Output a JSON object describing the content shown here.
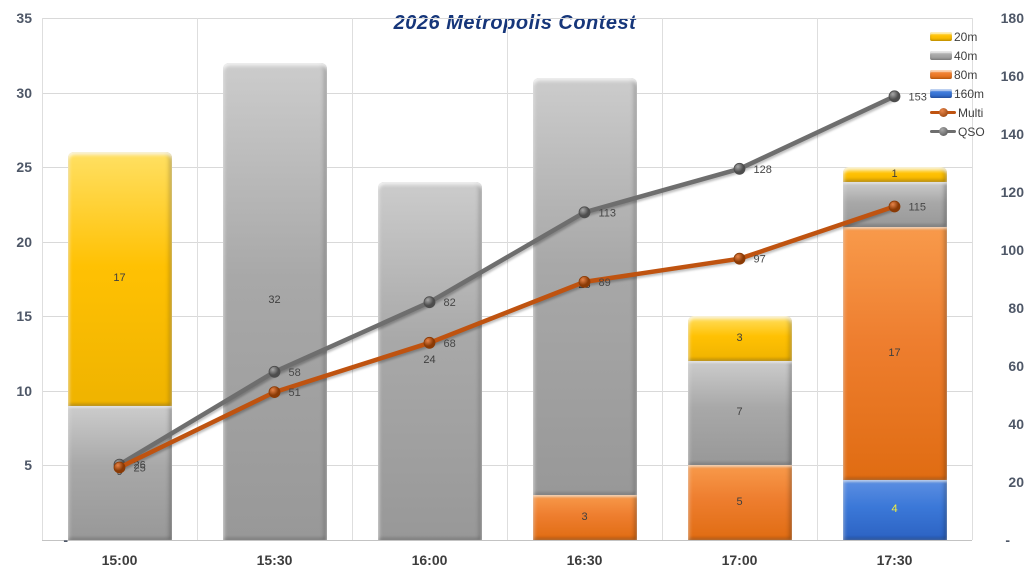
{
  "title": "2026 Metropolis Contest",
  "chart_data": {
    "type": "bar",
    "subtype": "stacked-column-with-lines",
    "title": "2026 Metropolis Contest",
    "categories": [
      "15:00",
      "15:30",
      "16:00",
      "16:30",
      "17:00",
      "17:30"
    ],
    "bar_series": [
      {
        "name": "20m",
        "color": "#FFC000",
        "values": [
          17,
          0,
          0,
          0,
          3,
          1
        ]
      },
      {
        "name": "40m",
        "color": "#A6A6A6",
        "values": [
          9,
          32,
          24,
          28,
          7,
          3
        ]
      },
      {
        "name": "80m",
        "color": "#ED7D31",
        "values": [
          0,
          0,
          0,
          3,
          5,
          17
        ]
      },
      {
        "name": "160m",
        "color": "#3B78D8",
        "values": [
          0,
          0,
          0,
          0,
          0,
          4
        ],
        "label_color_class": "lite"
      }
    ],
    "stack_order_bottom_to_top": [
      "160m",
      "80m",
      "40m",
      "20m"
    ],
    "hidden_bar_labels": [
      {
        "series": "40m",
        "category": "17:30"
      }
    ],
    "line_series": [
      {
        "name": "QSO",
        "color": "#6e6e6e",
        "marker_inner": "#a8a8a8",
        "marker_outer": "#4d4d4d",
        "values": [
          26,
          58,
          82,
          113,
          128,
          153
        ],
        "axis": "right"
      },
      {
        "name": "Multi",
        "color": "#bf5310",
        "marker_inner": "#e8854a",
        "marker_outer": "#8a3a05",
        "values": [
          25,
          51,
          68,
          89,
          97,
          115
        ],
        "axis": "right"
      }
    ],
    "left_axis": {
      "min": 0,
      "max": 35,
      "step": 5,
      "ticks": [
        "-",
        "5",
        "10",
        "15",
        "20",
        "25",
        "30",
        "35"
      ]
    },
    "right_axis": {
      "min": 0,
      "max": 180,
      "step": 20,
      "ticks": [
        "-",
        "20",
        "40",
        "60",
        "80",
        "100",
        "120",
        "140",
        "160",
        "180"
      ]
    },
    "legend": [
      "20m",
      "40m",
      "80m",
      "160m",
      "Multi",
      "QSO"
    ],
    "legend_position": "top-right",
    "grid": true
  }
}
